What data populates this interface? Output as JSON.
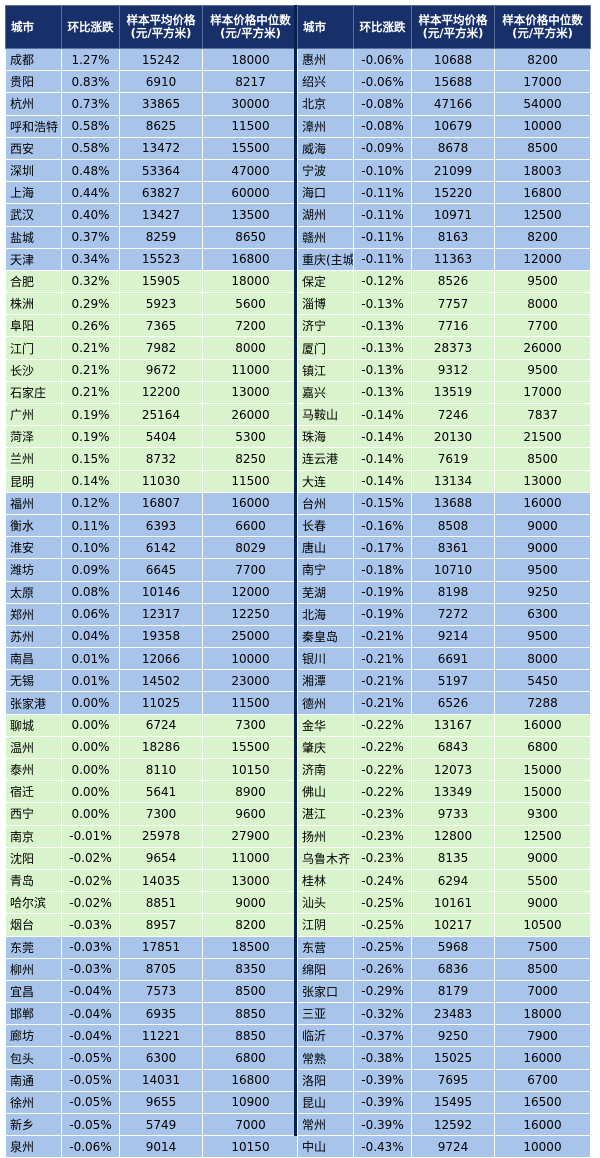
{
  "headers": [
    "城市",
    "环比涨跌",
    "样本平均价格\n(元/平方米)",
    "样本价格中位数\n(元/平方米)"
  ],
  "row_bands": [
    "blue",
    "blue",
    "blue",
    "blue",
    "blue",
    "blue",
    "blue",
    "blue",
    "blue",
    "blue",
    "green",
    "green",
    "green",
    "green",
    "green",
    "green",
    "green",
    "green",
    "green",
    "green",
    "blue",
    "blue",
    "blue",
    "blue",
    "blue",
    "blue",
    "blue",
    "blue",
    "blue",
    "blue",
    "green",
    "green",
    "green",
    "green",
    "green",
    "green",
    "green",
    "green",
    "green",
    "green",
    "blue",
    "blue",
    "blue",
    "blue",
    "blue",
    "blue",
    "blue",
    "blue",
    "blue",
    "blue"
  ],
  "colors": {
    "header_bg": "#17306a",
    "blue_band": "#a9c4ea",
    "green_band": "#d9f3cd",
    "divider": "#0a2050"
  },
  "left_rows": [
    [
      "成都",
      "1.27%",
      "15242",
      "18000"
    ],
    [
      "贵阳",
      "0.83%",
      "6910",
      "8217"
    ],
    [
      "杭州",
      "0.73%",
      "33865",
      "30000"
    ],
    [
      "呼和浩特",
      "0.58%",
      "8625",
      "11500"
    ],
    [
      "西安",
      "0.58%",
      "13472",
      "15500"
    ],
    [
      "深圳",
      "0.48%",
      "53364",
      "47000"
    ],
    [
      "上海",
      "0.44%",
      "63827",
      "60000"
    ],
    [
      "武汉",
      "0.40%",
      "13427",
      "13500"
    ],
    [
      "盐城",
      "0.37%",
      "8259",
      "8650"
    ],
    [
      "天津",
      "0.34%",
      "15523",
      "16800"
    ],
    [
      "合肥",
      "0.32%",
      "15905",
      "18000"
    ],
    [
      "株洲",
      "0.29%",
      "5923",
      "5600"
    ],
    [
      "阜阳",
      "0.26%",
      "7365",
      "7200"
    ],
    [
      "江门",
      "0.21%",
      "7982",
      "8000"
    ],
    [
      "长沙",
      "0.21%",
      "9672",
      "11000"
    ],
    [
      "石家庄",
      "0.21%",
      "12200",
      "13000"
    ],
    [
      "广州",
      "0.19%",
      "25164",
      "26000"
    ],
    [
      "菏泽",
      "0.19%",
      "5404",
      "5300"
    ],
    [
      "兰州",
      "0.15%",
      "8732",
      "8250"
    ],
    [
      "昆明",
      "0.14%",
      "11030",
      "11500"
    ],
    [
      "福州",
      "0.12%",
      "16807",
      "16000"
    ],
    [
      "衡水",
      "0.11%",
      "6393",
      "6600"
    ],
    [
      "淮安",
      "0.10%",
      "6142",
      "8029"
    ],
    [
      "潍坊",
      "0.09%",
      "6645",
      "7700"
    ],
    [
      "太原",
      "0.08%",
      "10146",
      "12000"
    ],
    [
      "郑州",
      "0.06%",
      "12317",
      "12250"
    ],
    [
      "苏州",
      "0.04%",
      "19358",
      "25000"
    ],
    [
      "南昌",
      "0.01%",
      "12066",
      "10000"
    ],
    [
      "无锡",
      "0.01%",
      "14502",
      "23000"
    ],
    [
      "张家港",
      "0.00%",
      "11025",
      "11500"
    ],
    [
      "聊城",
      "0.00%",
      "6724",
      "7300"
    ],
    [
      "温州",
      "0.00%",
      "18286",
      "15500"
    ],
    [
      "泰州",
      "0.00%",
      "8110",
      "10150"
    ],
    [
      "宿迁",
      "0.00%",
      "5641",
      "8900"
    ],
    [
      "西宁",
      "0.00%",
      "7300",
      "9600"
    ],
    [
      "南京",
      "-0.01%",
      "25978",
      "27900"
    ],
    [
      "沈阳",
      "-0.02%",
      "9654",
      "11000"
    ],
    [
      "青岛",
      "-0.02%",
      "14035",
      "13000"
    ],
    [
      "哈尔滨",
      "-0.02%",
      "8851",
      "9000"
    ],
    [
      "烟台",
      "-0.03%",
      "8957",
      "8200"
    ],
    [
      "东莞",
      "-0.03%",
      "17851",
      "18500"
    ],
    [
      "柳州",
      "-0.03%",
      "8705",
      "8350"
    ],
    [
      "宜昌",
      "-0.04%",
      "7573",
      "8500"
    ],
    [
      "邯郸",
      "-0.04%",
      "6935",
      "8850"
    ],
    [
      "廊坊",
      "-0.04%",
      "11221",
      "8850"
    ],
    [
      "包头",
      "-0.05%",
      "6300",
      "6800"
    ],
    [
      "南通",
      "-0.05%",
      "14031",
      "16800"
    ],
    [
      "徐州",
      "-0.05%",
      "9655",
      "10900"
    ],
    [
      "新乡",
      "-0.05%",
      "5749",
      "7000"
    ],
    [
      "泉州",
      "-0.06%",
      "9014",
      "10150"
    ]
  ],
  "right_rows": [
    [
      "惠州",
      "-0.06%",
      "10688",
      "8200"
    ],
    [
      "绍兴",
      "-0.06%",
      "15688",
      "17000"
    ],
    [
      "北京",
      "-0.08%",
      "47166",
      "54000"
    ],
    [
      "漳州",
      "-0.08%",
      "10679",
      "10000"
    ],
    [
      "威海",
      "-0.09%",
      "8678",
      "8500"
    ],
    [
      "宁波",
      "-0.10%",
      "21099",
      "18003"
    ],
    [
      "海口",
      "-0.11%",
      "15220",
      "16800"
    ],
    [
      "湖州",
      "-0.11%",
      "10971",
      "12500"
    ],
    [
      "赣州",
      "-0.11%",
      "8163",
      "8200"
    ],
    [
      "重庆(主城区)",
      "-0.11%",
      "11363",
      "12000"
    ],
    [
      "保定",
      "-0.12%",
      "8526",
      "9500"
    ],
    [
      "淄博",
      "-0.13%",
      "7757",
      "8000"
    ],
    [
      "济宁",
      "-0.13%",
      "7716",
      "7700"
    ],
    [
      "厦门",
      "-0.13%",
      "28373",
      "26000"
    ],
    [
      "镇江",
      "-0.13%",
      "9312",
      "9500"
    ],
    [
      "嘉兴",
      "-0.13%",
      "13519",
      "17000"
    ],
    [
      "马鞍山",
      "-0.14%",
      "7246",
      "7837"
    ],
    [
      "珠海",
      "-0.14%",
      "20130",
      "21500"
    ],
    [
      "连云港",
      "-0.14%",
      "7619",
      "8500"
    ],
    [
      "大连",
      "-0.14%",
      "13134",
      "13000"
    ],
    [
      "台州",
      "-0.15%",
      "13688",
      "16000"
    ],
    [
      "长春",
      "-0.16%",
      "8508",
      "9000"
    ],
    [
      "唐山",
      "-0.17%",
      "8361",
      "9000"
    ],
    [
      "南宁",
      "-0.18%",
      "10710",
      "9500"
    ],
    [
      "芜湖",
      "-0.19%",
      "8198",
      "9250"
    ],
    [
      "北海",
      "-0.19%",
      "7272",
      "6300"
    ],
    [
      "秦皇岛",
      "-0.21%",
      "9214",
      "9500"
    ],
    [
      "银川",
      "-0.21%",
      "6691",
      "8000"
    ],
    [
      "湘潭",
      "-0.21%",
      "5197",
      "5450"
    ],
    [
      "德州",
      "-0.21%",
      "6526",
      "7288"
    ],
    [
      "金华",
      "-0.22%",
      "13167",
      "16000"
    ],
    [
      "肇庆",
      "-0.22%",
      "6843",
      "6800"
    ],
    [
      "济南",
      "-0.22%",
      "12073",
      "15000"
    ],
    [
      "佛山",
      "-0.22%",
      "13349",
      "15000"
    ],
    [
      "湛江",
      "-0.23%",
      "9733",
      "9300"
    ],
    [
      "扬州",
      "-0.23%",
      "12800",
      "12500"
    ],
    [
      "乌鲁木齐",
      "-0.23%",
      "8135",
      "9000"
    ],
    [
      "桂林",
      "-0.24%",
      "6294",
      "5500"
    ],
    [
      "汕头",
      "-0.25%",
      "10161",
      "9000"
    ],
    [
      "江阴",
      "-0.25%",
      "10217",
      "10500"
    ],
    [
      "东营",
      "-0.25%",
      "5968",
      "7500"
    ],
    [
      "绵阳",
      "-0.26%",
      "6836",
      "8500"
    ],
    [
      "张家口",
      "-0.29%",
      "8179",
      "7000"
    ],
    [
      "三亚",
      "-0.32%",
      "23483",
      "18000"
    ],
    [
      "临沂",
      "-0.37%",
      "9250",
      "7900"
    ],
    [
      "常熟",
      "-0.38%",
      "15025",
      "16000"
    ],
    [
      "洛阳",
      "-0.39%",
      "7695",
      "6700"
    ],
    [
      "昆山",
      "-0.39%",
      "15495",
      "16500"
    ],
    [
      "常州",
      "-0.39%",
      "12592",
      "16000"
    ],
    [
      "中山",
      "-0.43%",
      "9724",
      "10000"
    ]
  ]
}
